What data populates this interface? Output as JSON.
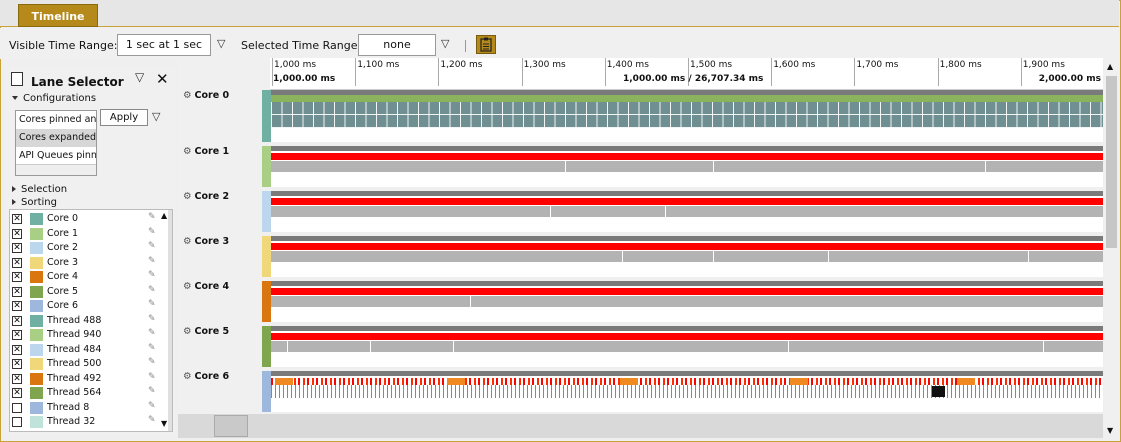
{
  "tab": {
    "label": "Timeline"
  },
  "toolbar": {
    "visible_range_label": "Visible Time Range:",
    "visible_range_value": "1 sec at 1 sec",
    "selected_range_label": "Selected Time Range:",
    "selected_range_value": "none"
  },
  "lane_selector": {
    "title": "Lane Selector",
    "configurations_label": "Configurations",
    "configurations": [
      "Cores pinned and",
      "Cores expanded",
      "API Queues pinne"
    ],
    "apply_label": "Apply",
    "selection_label": "Selection",
    "sorting_label": "Sorting",
    "lanes": [
      {
        "name": "Core 0",
        "checked": true,
        "color": "#6fb0a2"
      },
      {
        "name": "Core 1",
        "checked": true,
        "color": "#a9cf85"
      },
      {
        "name": "Core 2",
        "checked": true,
        "color": "#bcd6ee"
      },
      {
        "name": "Core 3",
        "checked": true,
        "color": "#f0d77a"
      },
      {
        "name": "Core 4",
        "checked": true,
        "color": "#d9760f"
      },
      {
        "name": "Core 5",
        "checked": true,
        "color": "#7fa64e"
      },
      {
        "name": "Core 6",
        "checked": true,
        "color": "#9db8dc"
      },
      {
        "name": "Thread 488",
        "checked": true,
        "color": "#6fb0a2"
      },
      {
        "name": "Thread 940",
        "checked": true,
        "color": "#a9cf85"
      },
      {
        "name": "Thread 484",
        "checked": true,
        "color": "#bcd6ee"
      },
      {
        "name": "Thread 500",
        "checked": true,
        "color": "#f0d77a"
      },
      {
        "name": "Thread 492",
        "checked": true,
        "color": "#d9760f"
      },
      {
        "name": "Thread 564",
        "checked": true,
        "color": "#7fa64e"
      },
      {
        "name": "Thread 8",
        "checked": false,
        "color": "#9db8dc"
      },
      {
        "name": "Thread 32",
        "checked": false,
        "color": "#bfe3da"
      }
    ]
  },
  "ruler": {
    "ticks": [
      "1,000 ms",
      "1,100 ms",
      "1,200 ms",
      "1,300 ms",
      "1,400 ms",
      "1,500 ms",
      "1,600 ms",
      "1,700 ms",
      "1,800 ms",
      "1,900 ms"
    ],
    "start": "1,000.00 ms",
    "center": "1,000.00 ms / 26,707.34 ms",
    "end": "2,000.00 ms"
  },
  "timeline_lanes": [
    {
      "name": "Core 0",
      "color": "#6fb0a2"
    },
    {
      "name": "Core 1",
      "color": "#a9cf85"
    },
    {
      "name": "Core 2",
      "color": "#bcd6ee"
    },
    {
      "name": "Core 3",
      "color": "#f0d77a"
    },
    {
      "name": "Core 4",
      "color": "#d9760f"
    },
    {
      "name": "Core 5",
      "color": "#7fa64e"
    },
    {
      "name": "Core 6",
      "color": "#9db8dc"
    }
  ],
  "icons": {
    "gear": "gear-icon",
    "pin": "pin-icon",
    "clipboard": "clipboard-icon",
    "close": "close-icon"
  }
}
